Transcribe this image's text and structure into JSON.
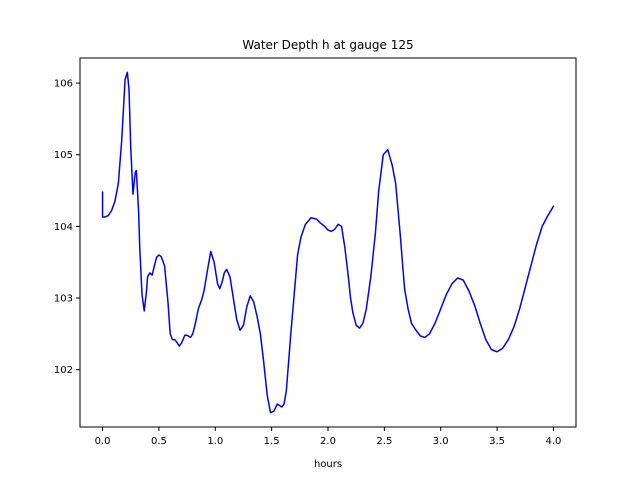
{
  "chart_data": {
    "type": "line",
    "title": "Water Depth h at gauge 125",
    "xlabel": "hours",
    "ylabel": "",
    "xlim": [
      -0.2,
      4.2
    ],
    "ylim": [
      101.2,
      106.35
    ],
    "xticks": [
      0.0,
      0.5,
      1.0,
      1.5,
      2.0,
      2.5,
      3.0,
      3.5,
      4.0
    ],
    "xtick_labels": [
      "0.0",
      "0.5",
      "1.0",
      "1.5",
      "2.0",
      "2.5",
      "3.0",
      "3.5",
      "4.0"
    ],
    "yticks": [
      102,
      103,
      104,
      105,
      106
    ],
    "ytick_labels": [
      "102",
      "103",
      "104",
      "105",
      "106"
    ],
    "grid": false,
    "series": [
      {
        "color": "#0000ff",
        "x": [
          0.0,
          0.0,
          0.02,
          0.05,
          0.08,
          0.11,
          0.14,
          0.17,
          0.2,
          0.22,
          0.235,
          0.25,
          0.27,
          0.29,
          0.3,
          0.32,
          0.33,
          0.35,
          0.37,
          0.39,
          0.4,
          0.42,
          0.44,
          0.46,
          0.48,
          0.5,
          0.52,
          0.55,
          0.58,
          0.6,
          0.62,
          0.64,
          0.66,
          0.68,
          0.7,
          0.73,
          0.75,
          0.78,
          0.8,
          0.82,
          0.85,
          0.88,
          0.9,
          0.93,
          0.96,
          0.99,
          1.02,
          1.04,
          1.06,
          1.08,
          1.1,
          1.13,
          1.16,
          1.19,
          1.22,
          1.25,
          1.28,
          1.31,
          1.34,
          1.37,
          1.4,
          1.43,
          1.46,
          1.49,
          1.52,
          1.55,
          1.57,
          1.59,
          1.61,
          1.63,
          1.65,
          1.67,
          1.7,
          1.73,
          1.76,
          1.8,
          1.85,
          1.9,
          1.93,
          1.97,
          2.0,
          2.03,
          2.06,
          2.09,
          2.12,
          2.15,
          2.18,
          2.2,
          2.22,
          2.25,
          2.28,
          2.31,
          2.34,
          2.38,
          2.42,
          2.45,
          2.49,
          2.53,
          2.57,
          2.6,
          2.62,
          2.64,
          2.66,
          2.68,
          2.71,
          2.74,
          2.78,
          2.82,
          2.86,
          2.9,
          2.95,
          3.0,
          3.05,
          3.1,
          3.15,
          3.2,
          3.25,
          3.3,
          3.35,
          3.4,
          3.45,
          3.5,
          3.55,
          3.6,
          3.65,
          3.7,
          3.75,
          3.8,
          3.85,
          3.9,
          3.95,
          4.0
        ],
        "y": [
          104.48,
          104.13,
          104.13,
          104.15,
          104.22,
          104.35,
          104.6,
          105.2,
          106.05,
          106.15,
          105.9,
          105.1,
          104.45,
          104.75,
          104.78,
          104.2,
          103.7,
          103.05,
          102.82,
          103.1,
          103.3,
          103.35,
          103.32,
          103.45,
          103.57,
          103.6,
          103.58,
          103.45,
          102.95,
          102.5,
          102.42,
          102.42,
          102.38,
          102.33,
          102.37,
          102.48,
          102.48,
          102.45,
          102.5,
          102.62,
          102.85,
          102.98,
          103.1,
          103.38,
          103.65,
          103.5,
          103.2,
          103.13,
          103.22,
          103.35,
          103.4,
          103.3,
          103.0,
          102.7,
          102.55,
          102.62,
          102.88,
          103.03,
          102.95,
          102.75,
          102.5,
          102.1,
          101.65,
          101.4,
          101.42,
          101.52,
          101.5,
          101.48,
          101.52,
          101.7,
          102.1,
          102.5,
          103.05,
          103.6,
          103.85,
          104.03,
          104.12,
          104.1,
          104.05,
          104.0,
          103.95,
          103.93,
          103.96,
          104.03,
          104.0,
          103.7,
          103.3,
          103.0,
          102.8,
          102.62,
          102.58,
          102.65,
          102.85,
          103.3,
          103.9,
          104.5,
          105.0,
          105.07,
          104.85,
          104.6,
          104.25,
          103.9,
          103.5,
          103.12,
          102.85,
          102.65,
          102.55,
          102.47,
          102.45,
          102.5,
          102.65,
          102.85,
          103.05,
          103.2,
          103.28,
          103.25,
          103.1,
          102.9,
          102.65,
          102.42,
          102.28,
          102.25,
          102.3,
          102.42,
          102.6,
          102.85,
          103.15,
          103.45,
          103.75,
          104.0,
          104.15,
          104.28
        ]
      }
    ]
  }
}
